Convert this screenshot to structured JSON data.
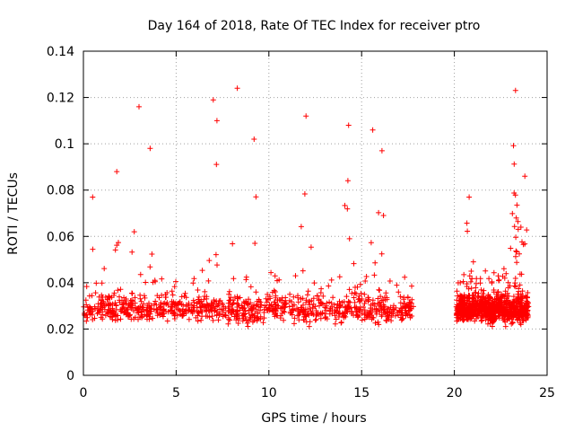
{
  "chart_data": {
    "type": "scatter",
    "title": "Day 164 of 2018, Rate Of TEC Index for receiver ptro",
    "xlabel": "GPS time / hours",
    "ylabel": "ROTI / TECUs",
    "xlim": [
      0,
      25
    ],
    "ylim": [
      0,
      0.14
    ],
    "xticks": [
      0,
      5,
      10,
      15,
      20,
      25
    ],
    "yticks": [
      0,
      0.02,
      0.04,
      0.06,
      0.08,
      0.1,
      0.12,
      0.14
    ],
    "xtick_labels": [
      "0",
      "5",
      "10",
      "15",
      "20",
      "25"
    ],
    "ytick_labels": [
      "0",
      "0.02",
      "0.04",
      "0.06",
      "0.08",
      "0.1",
      "0.12",
      "0.14"
    ],
    "grid": true,
    "marker": "+",
    "color": "#ff0000",
    "series": [
      {
        "name": "ROTI",
        "segments": [
          [
            0.0,
            17.8
          ],
          [
            20.1,
            24.0
          ]
        ],
        "baseline": 0.028,
        "peaks": [
          {
            "x": 3.0,
            "y": 0.116
          },
          {
            "x": 3.6,
            "y": 0.098
          },
          {
            "x": 7.0,
            "y": 0.119
          },
          {
            "x": 7.2,
            "y": 0.11
          },
          {
            "x": 8.3,
            "y": 0.124
          },
          {
            "x": 9.2,
            "y": 0.102
          },
          {
            "x": 12.0,
            "y": 0.112
          },
          {
            "x": 14.3,
            "y": 0.108
          },
          {
            "x": 15.6,
            "y": 0.106
          },
          {
            "x": 16.1,
            "y": 0.097
          },
          {
            "x": 23.3,
            "y": 0.123
          },
          {
            "x": 23.8,
            "y": 0.086
          },
          {
            "x": 20.8,
            "y": 0.077
          },
          {
            "x": 0.5,
            "y": 0.077
          },
          {
            "x": 1.8,
            "y": 0.088
          }
        ],
        "min_y": 0.006,
        "max_y": 0.124
      }
    ]
  }
}
